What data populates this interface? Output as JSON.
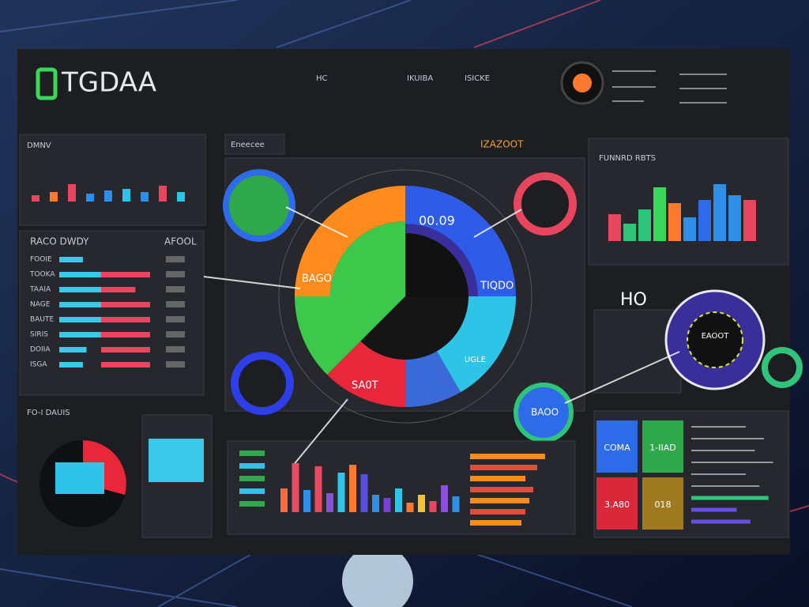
{
  "header": {
    "logo": "TGDAA",
    "nav": [
      "HC",
      "IKUIBA",
      "ISICKE"
    ]
  },
  "left_top": {
    "title": "DMNV",
    "bars": [
      8,
      12,
      22,
      10,
      14,
      16,
      12,
      20,
      12
    ]
  },
  "left_list": {
    "title": "RACO DWDY",
    "side": "AFOOL",
    "rows": [
      {
        "label": "FOOIE",
        "a": 26,
        "b": 0
      },
      {
        "label": "TOOKA",
        "a": 46,
        "b": 100
      },
      {
        "label": "TAAIA",
        "a": 62,
        "b": 70
      },
      {
        "label": "NAGE",
        "a": 64,
        "b": 100
      },
      {
        "label": "BAUTE",
        "a": 66,
        "b": 100
      },
      {
        "label": "SIRIS",
        "a": 46,
        "b": 100
      },
      {
        "label": "DOIIA",
        "a": 30,
        "b": 100
      },
      {
        "label": "ISGA",
        "a": 26,
        "b": 100
      }
    ]
  },
  "left_bottom": {
    "title": "FO-I DAUIS"
  },
  "center": {
    "tab": "Eneecee",
    "title": "IZAZOOT",
    "center_value": "00.09",
    "left_label": "BAGO",
    "right_label": "TIQDO",
    "bottom_label": "UGLE",
    "corner_label": "SA0T",
    "badge": "BAOO"
  },
  "bottom_bars": {
    "values": [
      30,
      62,
      28,
      58,
      24,
      50,
      60,
      48,
      22,
      18,
      30,
      12,
      22,
      14,
      34,
      20
    ],
    "colors": [
      "#ff6a3d",
      "#e84a5f",
      "#2e8fe8",
      "#e84a5f",
      "#8a4fd8",
      "#2ec4e8",
      "#ff7a2e",
      "#5a4fe0",
      "#2e8fe8",
      "#7a3fd8",
      "#2ec4e8",
      "#ff7a2e",
      "#f2c12e",
      "#e8455f",
      "#8a4fd8",
      "#2e8fe8"
    ],
    "hbars": [
      95,
      85,
      70,
      80,
      75,
      70,
      65
    ]
  },
  "right_top": {
    "title": "FUNNRD RBTS",
    "bars": [
      34,
      22,
      40,
      68,
      48,
      30,
      52,
      72,
      58,
      52
    ],
    "colors": [
      "#e8455f",
      "#2ec47a",
      "#2ec47a",
      "#39d85a",
      "#ff7a2e",
      "#2e8fe8",
      "#2e6be8",
      "#2e8fe8",
      "#2e8fe8",
      "#e8455f"
    ]
  },
  "right_mid": {
    "title": "HO",
    "label": "EAOOT"
  },
  "tiles": [
    {
      "label": "COMA",
      "color": "#2e6be8"
    },
    {
      "label": "1-IIAD",
      "color": "#2ea84a"
    },
    {
      "label": "3.A80",
      "color": "#d8283a"
    },
    {
      "label": "018",
      "color": "#a07a1e"
    }
  ],
  "right_lines": [
    60,
    80,
    70,
    90,
    60,
    75,
    85,
    50,
    65
  ]
}
